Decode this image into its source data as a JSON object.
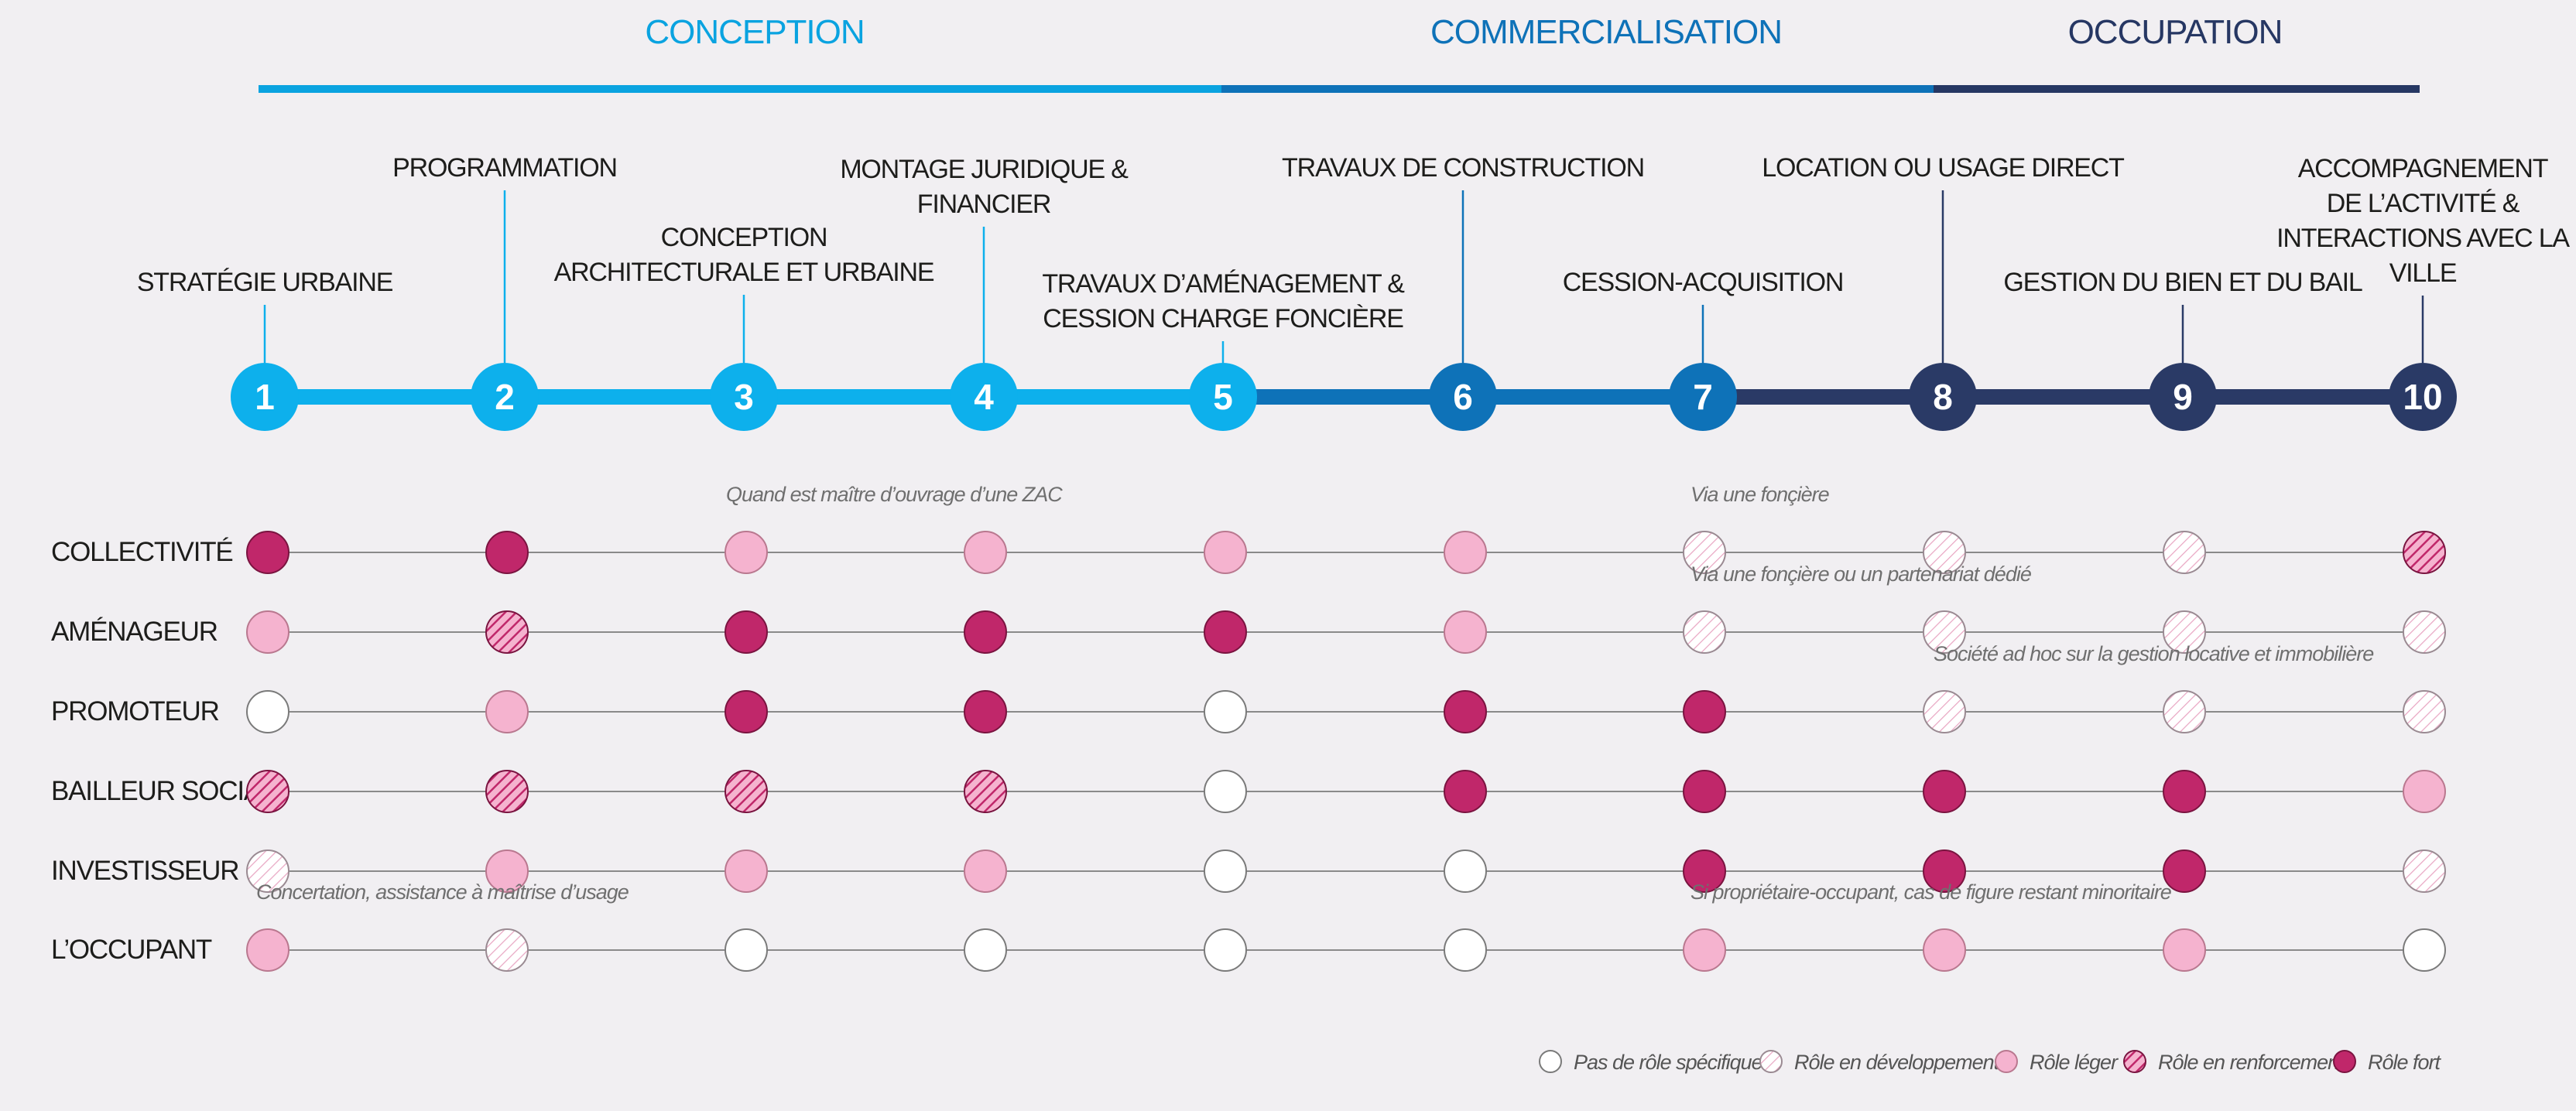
{
  "phases": [
    {
      "label": "CONCEPTION",
      "color": "#0aa3e0"
    },
    {
      "label": "COMMERCIALISATION",
      "color": "#0e72b8"
    },
    {
      "label": "OCCUPATION",
      "color": "#263763"
    }
  ],
  "steps": [
    {
      "num": "1",
      "lines": [
        "STRATÉGIE URBAINE"
      ],
      "color": "#0db0ec"
    },
    {
      "num": "2",
      "lines": [
        "PROGRAMMATION"
      ],
      "color": "#0db0ec"
    },
    {
      "num": "3",
      "lines": [
        "CONCEPTION",
        "ARCHITECTURALE ET URBAINE"
      ],
      "color": "#0db0ec"
    },
    {
      "num": "4",
      "lines": [
        "MONTAGE JURIDIQUE &",
        "FINANCIER"
      ],
      "color": "#0db0ec"
    },
    {
      "num": "5",
      "lines": [
        "TRAVAUX D’AMÉNAGEMENT &",
        "CESSION CHARGE FONCIÈRE"
      ],
      "color": "#0db0ec"
    },
    {
      "num": "6",
      "lines": [
        "TRAVAUX DE CONSTRUCTION"
      ],
      "color": "#0e72b8"
    },
    {
      "num": "7",
      "lines": [
        "CESSION-ACQUISITION"
      ],
      "color": "#0e72b8"
    },
    {
      "num": "8",
      "lines": [
        "LOCATION OU USAGE DIRECT"
      ],
      "color": "#2a3a66"
    },
    {
      "num": "9",
      "lines": [
        "GESTION DU BIEN ET DU BAIL"
      ],
      "color": "#2a3a66"
    },
    {
      "num": "10",
      "lines": [
        "ACCOMPAGNEMENT",
        "DE L’ACTIVITÉ &",
        "INTERACTIONS AVEC LA",
        "VILLE"
      ],
      "color": "#2a3a66"
    }
  ],
  "actors": [
    {
      "label": "COLLECTIVITÉ",
      "roles": [
        "fort",
        "fort",
        "leger",
        "leger",
        "leger",
        "leger",
        "dev",
        "dev",
        "dev",
        "renfort"
      ]
    },
    {
      "label": "AMÉNAGEUR",
      "roles": [
        "leger",
        "renfort",
        "fort",
        "fort",
        "fort",
        "leger",
        "dev",
        "dev",
        "dev",
        "dev"
      ]
    },
    {
      "label": "PROMOTEUR",
      "roles": [
        "none",
        "leger",
        "fort",
        "fort",
        "none",
        "fort",
        "fort",
        "dev",
        "dev",
        "dev"
      ]
    },
    {
      "label": "BAILLEUR SOCIAL",
      "roles": [
        "renfort",
        "renfort",
        "renfort",
        "renfort",
        "none",
        "fort",
        "fort",
        "fort",
        "fort",
        "leger"
      ]
    },
    {
      "label": "INVESTISSEUR",
      "roles": [
        "dev",
        "leger",
        "leger",
        "leger",
        "none",
        "none",
        "fort",
        "fort",
        "fort",
        "dev"
      ]
    },
    {
      "label": "L’OCCUPANT",
      "roles": [
        "leger",
        "dev",
        "none",
        "none",
        "none",
        "none",
        "leger",
        "leger",
        "leger",
        "none"
      ]
    }
  ],
  "notes": [
    {
      "text": "Quand est maître d’ouvrage d’une ZAC",
      "row": 0,
      "col": 2
    },
    {
      "text": "Via une fonçière",
      "row": 0,
      "col": 6
    },
    {
      "text": "Via une fonçière ou un partenariat dédié",
      "row": 1,
      "col": 6
    },
    {
      "text": "Société ad hoc sur la gestion locative et immobilière",
      "row": 2,
      "col": 7
    },
    {
      "text": "Concertation, assistance à maîtrise d’usage",
      "row": 5,
      "col": 0
    },
    {
      "text": "Si propriétaire-occupant, cas de figure restant minoritaire",
      "row": 5,
      "col": 6
    }
  ],
  "legend": [
    {
      "type": "none",
      "label": "Pas de rôle spécifique"
    },
    {
      "type": "dev",
      "label": "Rôle en développement"
    },
    {
      "type": "leger",
      "label": "Rôle léger"
    },
    {
      "type": "renfort",
      "label": "Rôle en renforcement"
    },
    {
      "type": "fort",
      "label": "Rôle fort"
    }
  ],
  "colors": {
    "fort": "#c0276a",
    "leger": "#f5b3cf",
    "hatch": "#c0276a",
    "hatch_light": "#e9a8c4",
    "text": "#1d1d1b",
    "note": "#6f6f6f",
    "row_line": "#8a8a8a"
  }
}
